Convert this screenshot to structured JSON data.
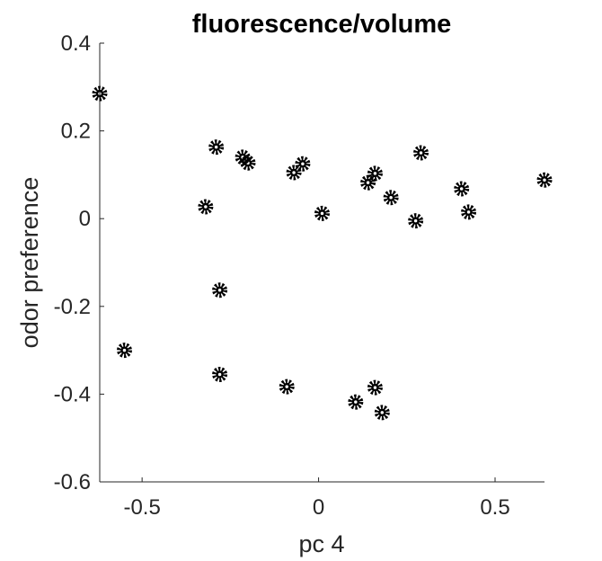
{
  "chart_data": {
    "type": "scatter",
    "title": "fluorescence/volume",
    "xlabel": "pc 4",
    "ylabel": "odor preference",
    "xlim": [
      -0.62,
      0.64
    ],
    "ylim": [
      -0.6,
      0.4
    ],
    "xticks": [
      -0.5,
      0,
      0.5
    ],
    "xtick_labels": [
      "-0.5",
      "0",
      "0.5"
    ],
    "yticks": [
      -0.6,
      -0.4,
      -0.2,
      0,
      0.2,
      0.4
    ],
    "ytick_labels": [
      "-0.6",
      "-0.4",
      "-0.2",
      "0",
      "0.2",
      "0.4"
    ],
    "grid": false,
    "marker_color": "#000000",
    "series": [
      {
        "points": [
          {
            "x": -0.62,
            "y": 0.285
          },
          {
            "x": -0.55,
            "y": -0.3
          },
          {
            "x": -0.32,
            "y": 0.027
          },
          {
            "x": -0.29,
            "y": 0.163
          },
          {
            "x": -0.28,
            "y": -0.163
          },
          {
            "x": -0.28,
            "y": -0.355
          },
          {
            "x": -0.215,
            "y": 0.14
          },
          {
            "x": -0.2,
            "y": 0.127
          },
          {
            "x": -0.09,
            "y": -0.383
          },
          {
            "x": -0.07,
            "y": 0.105
          },
          {
            "x": -0.045,
            "y": 0.125
          },
          {
            "x": 0.01,
            "y": 0.012
          },
          {
            "x": 0.105,
            "y": -0.418
          },
          {
            "x": 0.14,
            "y": 0.082
          },
          {
            "x": 0.16,
            "y": 0.103
          },
          {
            "x": 0.16,
            "y": -0.385
          },
          {
            "x": 0.18,
            "y": -0.442
          },
          {
            "x": 0.205,
            "y": 0.048
          },
          {
            "x": 0.275,
            "y": -0.005
          },
          {
            "x": 0.29,
            "y": 0.15
          },
          {
            "x": 0.405,
            "y": 0.068
          },
          {
            "x": 0.425,
            "y": 0.015
          },
          {
            "x": 0.64,
            "y": 0.088
          }
        ]
      }
    ]
  }
}
